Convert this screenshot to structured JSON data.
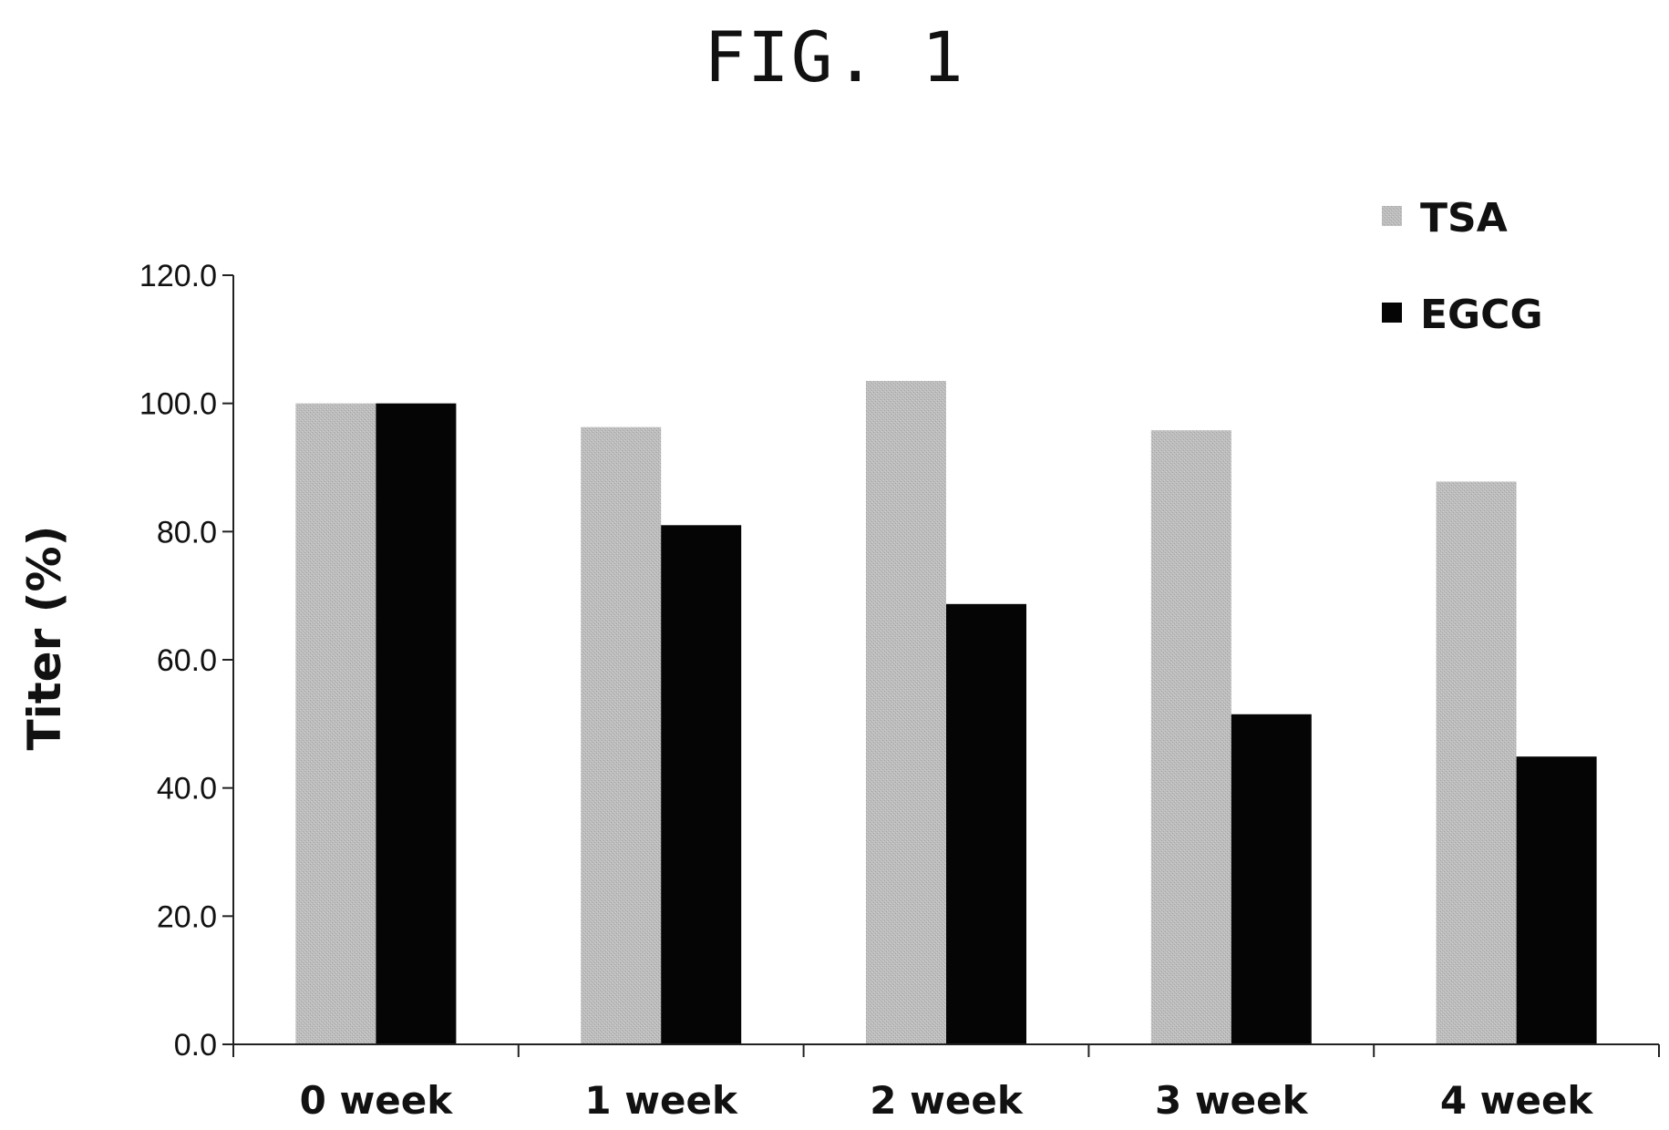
{
  "figure_label": "FIG. 1",
  "chart_data": {
    "type": "bar",
    "title": "",
    "xlabel": "",
    "ylabel": "Titer (%)",
    "categories": [
      "0 week",
      "1 week",
      "2 week",
      "3 week",
      "4 week"
    ],
    "series": [
      {
        "name": "TSA",
        "color": "#b8b8b8",
        "values": [
          100.0,
          96.3,
          103.5,
          95.8,
          87.8
        ]
      },
      {
        "name": "EGCG",
        "color": "#050505",
        "values": [
          100.0,
          81.0,
          68.7,
          51.5,
          44.9
        ]
      }
    ],
    "ylim": [
      0,
      120
    ],
    "yticks": [
      "0.0",
      "20.0",
      "40.0",
      "60.0",
      "80.0",
      "100.0",
      "120.0"
    ],
    "grid": false,
    "legend_position": "top-right"
  }
}
